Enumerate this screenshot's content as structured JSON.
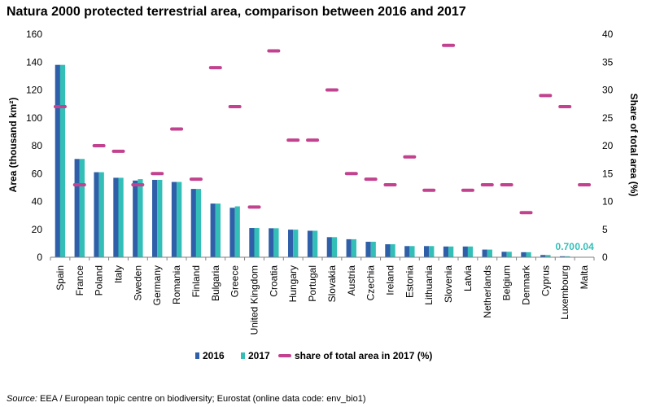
{
  "title": "Natura 2000 protected terrestrial area, comparison between 2016 and 2017",
  "source": {
    "label": "Source:",
    "text": "EEA / European topic centre on biodiversity; Eurostat (online data code: env_bio1)"
  },
  "colors": {
    "y2016": "#2e5fa8",
    "y2017": "#33bfb8",
    "share": "#c2428f",
    "axis": "#808080",
    "annotation": "#33bfb8"
  },
  "chart_data": {
    "type": "bar",
    "title": "Natura 2000 protected terrestrial area, comparison between 2016 and 2017",
    "ylabel": "Area (thousand km²)",
    "y2label": "Share of total area (%)",
    "ylim": [
      0,
      160
    ],
    "y2lim": [
      0,
      40
    ],
    "yticks": [
      "0",
      "20",
      "40",
      "60",
      "80",
      "100",
      "120",
      "140",
      "160"
    ],
    "y2ticks": [
      "0",
      "5",
      "10",
      "15",
      "20",
      "25",
      "30",
      "35",
      "40"
    ],
    "categories": [
      "Spain",
      "France",
      "Poland",
      "Italy",
      "Sweden",
      "Germany",
      "Romania",
      "Finland",
      "Bulgaria",
      "Greece",
      "United Kingdom",
      "Croatia",
      "Hungary",
      "Portugal",
      "Slovakia",
      "Austria",
      "Czechia",
      "Ireland",
      "Estonia",
      "Lithuania",
      "Slovenia",
      "Latvia",
      "Netherlands",
      "Belgium",
      "Denmark",
      "Cyprus",
      "Luxembourg",
      "Malta"
    ],
    "series": [
      {
        "name": "2016",
        "type": "bar",
        "values": [
          138,
          70.5,
          61,
          57,
          55,
          55.5,
          54,
          49,
          38.5,
          35.5,
          21,
          20.8,
          19.8,
          19,
          14.4,
          12.9,
          11.1,
          9.3,
          8,
          8,
          7.7,
          7.7,
          5.5,
          3.9,
          3.6,
          1.6,
          0.7,
          0.04
        ]
      },
      {
        "name": "2017",
        "type": "bar",
        "values": [
          138,
          70.5,
          61,
          57,
          56,
          55.5,
          54,
          49,
          38.5,
          36.5,
          21,
          20.8,
          19.8,
          19,
          14.4,
          12.9,
          11.1,
          9.3,
          8,
          8,
          7.7,
          7.7,
          5.5,
          3.9,
          3.6,
          1.6,
          0.7,
          0.04
        ]
      },
      {
        "name": "share of total area in 2017 (%)",
        "type": "marker",
        "axis": "right",
        "values": [
          27,
          13,
          20,
          19,
          13,
          15,
          23,
          14,
          34,
          27,
          9,
          37,
          21,
          21,
          30,
          15,
          14,
          13,
          18,
          12,
          38,
          12,
          13,
          13,
          8,
          29,
          27,
          13
        ]
      }
    ],
    "annotations": [
      {
        "text": "0.70",
        "category": "Luxembourg",
        "value": 0.7
      },
      {
        "text": "0.04",
        "category": "Malta",
        "value": 0.04
      }
    ],
    "legend": {
      "position": "bottom",
      "items": [
        {
          "label": "2016",
          "color_key": "y2016"
        },
        {
          "label": "2017",
          "color_key": "y2017"
        },
        {
          "label": "share of total area in 2017 (%)",
          "color_key": "share"
        }
      ]
    }
  }
}
